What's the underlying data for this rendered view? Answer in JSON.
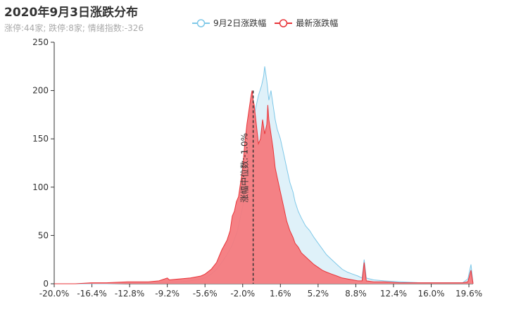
{
  "title": "2020年9月3日涨跌分布",
  "subtitle": "涨停:44家; 跌停:8家; 情绪指数:-326",
  "legend": [
    {
      "name": "9月2日涨跌幅",
      "color": "#7ec8e8"
    },
    {
      "name": "最新涨跌幅",
      "color": "#e8353a"
    }
  ],
  "chart_data": {
    "type": "area",
    "title": "2020年9月3日涨跌分布",
    "x_ticks": [
      "-20.0%",
      "-16.4%",
      "-12.8%",
      "-9.2%",
      "-5.6%",
      "-2.0%",
      "1.6%",
      "5.2%",
      "8.8%",
      "12.4%",
      "16.0%",
      "19.6%"
    ],
    "xlim": [
      -20.0,
      20.0
    ],
    "ylim": [
      0,
      250
    ],
    "y_ticks": [
      0,
      50,
      100,
      150,
      200,
      250
    ],
    "median_label": "涨幅中位数:-1.0%",
    "median_x": -1.0,
    "series": [
      {
        "name": "9月2日涨跌幅",
        "color": "#7ec8e8",
        "fill": "#d9eef8",
        "points": [
          [
            -20,
            0
          ],
          [
            -15,
            0
          ],
          [
            -10,
            1
          ],
          [
            -8,
            2
          ],
          [
            -7,
            3
          ],
          [
            -6,
            5
          ],
          [
            -5.6,
            6
          ],
          [
            -5,
            10
          ],
          [
            -4.5,
            15
          ],
          [
            -4,
            22
          ],
          [
            -3.5,
            30
          ],
          [
            -3,
            40
          ],
          [
            -2.5,
            55
          ],
          [
            -2,
            80
          ],
          [
            -1.8,
            100
          ],
          [
            -1.5,
            130
          ],
          [
            -1.2,
            155
          ],
          [
            -1,
            170
          ],
          [
            -0.8,
            180
          ],
          [
            -0.5,
            195
          ],
          [
            -0.2,
            205
          ],
          [
            0,
            215
          ],
          [
            0.1,
            225
          ],
          [
            0.3,
            210
          ],
          [
            0.5,
            190
          ],
          [
            0.7,
            200
          ],
          [
            0.9,
            185
          ],
          [
            1.1,
            170
          ],
          [
            1.3,
            160
          ],
          [
            1.6,
            150
          ],
          [
            1.9,
            135
          ],
          [
            2.2,
            120
          ],
          [
            2.5,
            105
          ],
          [
            2.8,
            95
          ],
          [
            3.0,
            85
          ],
          [
            3.3,
            75
          ],
          [
            3.6,
            68
          ],
          [
            4.0,
            60
          ],
          [
            4.4,
            55
          ],
          [
            4.8,
            48
          ],
          [
            5.2,
            42
          ],
          [
            5.6,
            36
          ],
          [
            6.0,
            30
          ],
          [
            6.5,
            25
          ],
          [
            7.0,
            20
          ],
          [
            7.5,
            15
          ],
          [
            8.0,
            12
          ],
          [
            8.5,
            10
          ],
          [
            9.0,
            8
          ],
          [
            9.4,
            6
          ],
          [
            9.6,
            25
          ],
          [
            9.8,
            6
          ],
          [
            10.5,
            4
          ],
          [
            11.5,
            3
          ],
          [
            13,
            2
          ],
          [
            15,
            1
          ],
          [
            17,
            1
          ],
          [
            19,
            1
          ],
          [
            19.5,
            5
          ],
          [
            19.8,
            20
          ],
          [
            20,
            0
          ]
        ]
      },
      {
        "name": "最新涨跌幅",
        "color": "#e8353a",
        "fill": "#f47a7e",
        "points": [
          [
            -20,
            0
          ],
          [
            -18,
            0
          ],
          [
            -16.4,
            1
          ],
          [
            -15,
            1
          ],
          [
            -13,
            2
          ],
          [
            -11,
            2
          ],
          [
            -10,
            3
          ],
          [
            -9.2,
            6
          ],
          [
            -9,
            4
          ],
          [
            -8,
            5
          ],
          [
            -7,
            6
          ],
          [
            -6,
            8
          ],
          [
            -5.6,
            10
          ],
          [
            -5,
            15
          ],
          [
            -4.5,
            22
          ],
          [
            -4,
            35
          ],
          [
            -3.5,
            45
          ],
          [
            -3.2,
            55
          ],
          [
            -3,
            70
          ],
          [
            -2.8,
            75
          ],
          [
            -2.6,
            85
          ],
          [
            -2.4,
            90
          ],
          [
            -2.2,
            105
          ],
          [
            -2.0,
            120
          ],
          [
            -1.8,
            145
          ],
          [
            -1.6,
            165
          ],
          [
            -1.4,
            180
          ],
          [
            -1.2,
            195
          ],
          [
            -1.1,
            200
          ],
          [
            -1.0,
            190
          ],
          [
            -0.9,
            185
          ],
          [
            -0.7,
            165
          ],
          [
            -0.5,
            145
          ],
          [
            -0.3,
            150
          ],
          [
            -0.1,
            170
          ],
          [
            0.1,
            155
          ],
          [
            0.3,
            165
          ],
          [
            0.4,
            185
          ],
          [
            0.5,
            170
          ],
          [
            0.7,
            155
          ],
          [
            0.9,
            140
          ],
          [
            1.1,
            120
          ],
          [
            1.3,
            110
          ],
          [
            1.6,
            95
          ],
          [
            1.9,
            80
          ],
          [
            2.2,
            65
          ],
          [
            2.5,
            55
          ],
          [
            2.8,
            48
          ],
          [
            3.0,
            42
          ],
          [
            3.3,
            38
          ],
          [
            3.6,
            32
          ],
          [
            4.0,
            28
          ],
          [
            4.4,
            24
          ],
          [
            4.8,
            20
          ],
          [
            5.2,
            17
          ],
          [
            5.6,
            14
          ],
          [
            6.0,
            12
          ],
          [
            6.5,
            10
          ],
          [
            7.0,
            8
          ],
          [
            7.5,
            6
          ],
          [
            8.0,
            5
          ],
          [
            8.5,
            4
          ],
          [
            9.0,
            3
          ],
          [
            9.4,
            3
          ],
          [
            9.6,
            22
          ],
          [
            9.8,
            3
          ],
          [
            10.5,
            2
          ],
          [
            11.5,
            2
          ],
          [
            13,
            1
          ],
          [
            15,
            1
          ],
          [
            17,
            1
          ],
          [
            19,
            1
          ],
          [
            19.5,
            2
          ],
          [
            19.8,
            14
          ],
          [
            20,
            0
          ]
        ]
      }
    ]
  }
}
